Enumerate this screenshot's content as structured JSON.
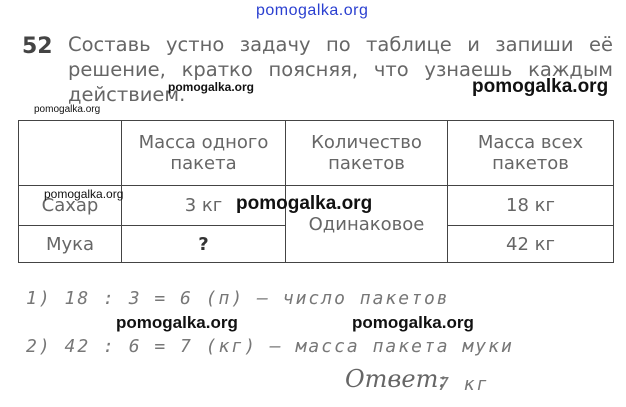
{
  "watermarks": [
    "pomogalka.org",
    "pomogalka.org",
    "pomogalka.org",
    "pomogalka.org",
    "pomogalka.org",
    "pomogalka.org",
    "pomogalka.org",
    "pomogalka.org"
  ],
  "task": {
    "number": "52",
    "text": "Составь устно задачу по таблице и запиши её решение, кратко поясняя, что узнаешь каждым действием."
  },
  "table": {
    "headers": [
      "",
      "Масса одного пакета",
      "Количество пакетов",
      "Масса всех пакетов"
    ],
    "rows": [
      {
        "name": "Сахар",
        "unit_mass": "3 кг",
        "count": "Одинаковое",
        "total": "18 кг"
      },
      {
        "name": "Мука",
        "unit_mass": "?",
        "total": "42 кг"
      }
    ]
  },
  "solution": {
    "step1": "1) 18 : 3 = 6 (п) — число пакетов",
    "step2": "2) 42 : 6 = 7 (кг) — масса пакета муки",
    "answer_label": "Ответ:",
    "answer_value": "7 кг"
  }
}
